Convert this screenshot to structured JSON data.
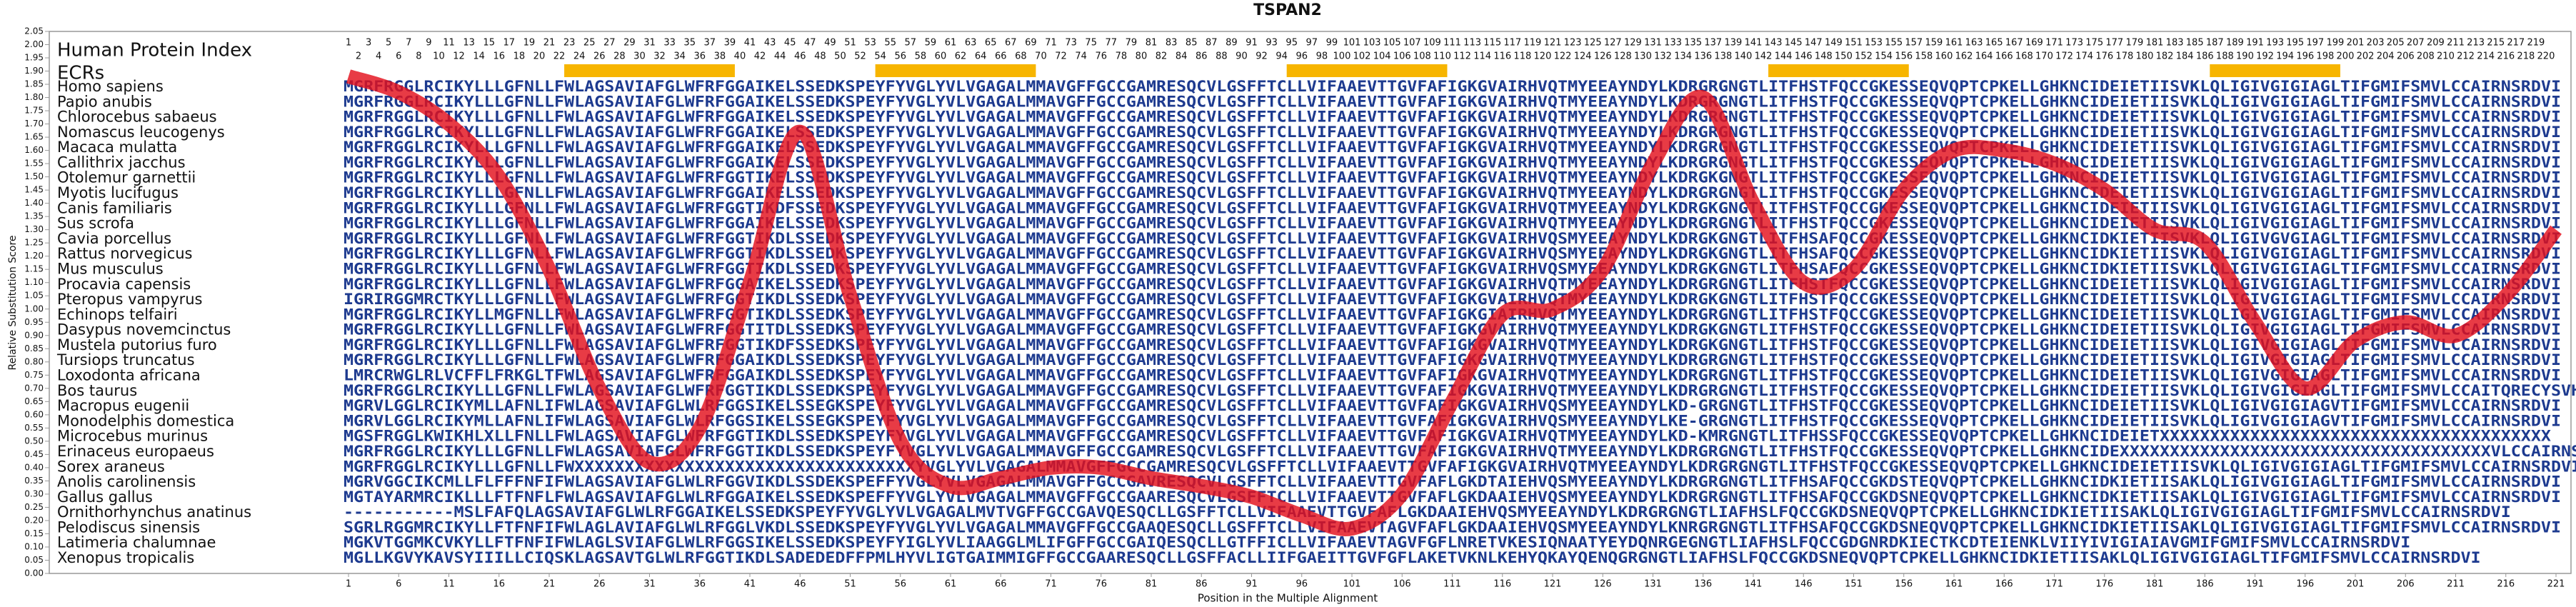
{
  "chart_data": {
    "type": "line",
    "title": "TSPAN2",
    "y_label": "Relative Substitution Score",
    "x_label": "Position in the Multiple Alignment",
    "index_label": "Human Protein Index",
    "ecr_label": "ECRs",
    "x": [
      1,
      6,
      11,
      16,
      21,
      26,
      31,
      36,
      41,
      46,
      51,
      56,
      61,
      66,
      71,
      76,
      81,
      86,
      91,
      96,
      101,
      106,
      111,
      116,
      121,
      126,
      131,
      136,
      141,
      146,
      151,
      156,
      161,
      166,
      171,
      176,
      181,
      186,
      191,
      196,
      201,
      206,
      211,
      216,
      221
    ],
    "values": [
      1.88,
      1.82,
      1.7,
      1.5,
      1.15,
      0.7,
      0.42,
      0.55,
      1.1,
      1.67,
      1.05,
      0.5,
      0.33,
      0.36,
      0.4,
      0.4,
      0.36,
      0.33,
      0.29,
      0.22,
      0.17,
      0.3,
      0.65,
      0.98,
      1.0,
      1.15,
      1.55,
      1.8,
      1.4,
      1.1,
      1.15,
      1.45,
      1.6,
      1.6,
      1.55,
      1.45,
      1.3,
      1.25,
      0.95,
      0.7,
      0.88,
      0.95,
      0.9,
      1.05,
      1.3
    ],
    "color": "#e3101c",
    "xlim": [
      1,
      221
    ],
    "xticks": [
      1,
      6,
      11,
      16,
      21,
      26,
      31,
      36,
      41,
      46,
      51,
      56,
      61,
      66,
      71,
      76,
      81,
      86,
      91,
      96,
      101,
      106,
      111,
      116,
      121,
      126,
      131,
      136,
      141,
      146,
      151,
      156,
      161,
      166,
      171,
      176,
      181,
      186,
      191,
      196,
      201,
      206,
      211,
      216,
      221
    ],
    "ylim": [
      0,
      2.05
    ],
    "yticks": [
      {
        "value": 0,
        "label": "0.00"
      },
      0.05,
      {
        "value": 0.1,
        "label": "0.10"
      },
      0.15,
      {
        "value": 0.2,
        "label": "0.20"
      },
      0.25,
      {
        "value": 0.3,
        "label": "0.30"
      },
      0.35,
      {
        "value": 0.4,
        "label": "0.40"
      },
      0.45,
      {
        "value": 0.5,
        "label": "0.50"
      },
      0.55,
      {
        "value": 0.6,
        "label": "0.60"
      },
      0.65,
      {
        "value": 0.7,
        "label": "0.70"
      },
      0.75,
      {
        "value": 0.8,
        "label": "0.80"
      },
      0.85,
      {
        "value": 0.9,
        "label": "0.90"
      },
      0.95,
      {
        "value": 1,
        "label": "1.00"
      },
      1.05,
      {
        "value": 1.1,
        "label": "1.10"
      },
      1.15,
      {
        "value": 1.2,
        "label": "1.20"
      },
      1.25,
      {
        "value": 1.3,
        "label": "1.30"
      },
      1.35,
      {
        "value": 1.4,
        "label": "1.40"
      },
      1.45,
      {
        "value": 1.5,
        "label": "1.50"
      },
      1.55,
      {
        "value": 1.6,
        "label": "1.60"
      },
      1.65,
      {
        "value": 1.7,
        "label": "1.70"
      },
      1.75,
      {
        "value": 1.8,
        "label": "1.80"
      },
      1.85,
      {
        "value": 1.9,
        "label": "1.90"
      },
      1.95,
      {
        "value": 2,
        "label": "2.00"
      },
      2.05
    ],
    "index": [
      1,
      2,
      3,
      4,
      5,
      6,
      7,
      8,
      9,
      10,
      11,
      12,
      13,
      14,
      15,
      16,
      17,
      18,
      19,
      20,
      21,
      22,
      23,
      24,
      25,
      26,
      27,
      28,
      29,
      30,
      31,
      32,
      33,
      34,
      35,
      36,
      37,
      38,
      39,
      40,
      41,
      42,
      43,
      44,
      45,
      46,
      47,
      48,
      49,
      50,
      51,
      52,
      53,
      54,
      55,
      56,
      57,
      58,
      59,
      60,
      61,
      62,
      63,
      64,
      65,
      66,
      67,
      68,
      69,
      70,
      71,
      72,
      73,
      74,
      75,
      76,
      77,
      78,
      79,
      80,
      81,
      82,
      83,
      84,
      85,
      86,
      87,
      88,
      89,
      90,
      91,
      92,
      93,
      94,
      95,
      96,
      97,
      98,
      99,
      100,
      101,
      102,
      103,
      104,
      105,
      106,
      107,
      108,
      109,
      110,
      111,
      112,
      113,
      114,
      115,
      116,
      117,
      118,
      119,
      120,
      121,
      122,
      123,
      124,
      125,
      126,
      127,
      128,
      129,
      130,
      131,
      132,
      133,
      134,
      135,
      136,
      137,
      138,
      139,
      140,
      141,
      142,
      143,
      144,
      145,
      146,
      147,
      148,
      149,
      150,
      151,
      152,
      153,
      154,
      155,
      156,
      157,
      158,
      159,
      160,
      161,
      162,
      163,
      164,
      165,
      166,
      167,
      168,
      169,
      170,
      171,
      172,
      173,
      174,
      175,
      176,
      177,
      178,
      179,
      180,
      181,
      182,
      183,
      184,
      185,
      186,
      187,
      188,
      189,
      190,
      191,
      192,
      193,
      194,
      195,
      196,
      197,
      198,
      199,
      200,
      201,
      202,
      203,
      204,
      205,
      206,
      207,
      208,
      209,
      210,
      211,
      212,
      213,
      214,
      215,
      216,
      217,
      218,
      219,
      220
    ],
    "ecrs": [
      [
        23,
        39
      ],
      [
        54,
        69
      ],
      [
        95,
        110
      ],
      [
        143,
        156
      ],
      [
        187,
        199
      ]
    ],
    "ecr_color": "#f7b500",
    "species": [
      {
        "name": "Homo sapiens",
        "sequence": "MGRFRGGLRCIKYLLLGFNLLFWLAGSAVIAFGLWFRFGGAIKELSSEDKSPEYFYVGLYVLVGAGALMMAVGFFGCCGAMRESQCVLGSFFTCLLVIFAAEVTTGVFAFIGKGVAIRHVQTMYEEAYNDYLKDRGRGNGTLITFHSTFQCCGKESSEQVQPTCPKELLGHKNCIDEIETIISVKLQLIGIVGIGIAGLTIFGMIFSMVLCCAIRNSRDVI"
      },
      {
        "name": "Papio anubis",
        "sequence": "MGRFRGGLRCIKYLLLGFNLLFWLAGSAVIAFGLWFRFGGAIKELSSEDKSPEYFYVGLYVLVGAGALMMAVGFFGCCGAMRESQCVLGSFFTCLLVIFAAEVTTGVFAFIGKGVAIRHVQTMYEEAYNDYLKDRGRGNGTLITFHSTFQCCGKESSEQVQPTCPKELLGHKNCIDEIETIISVKLQLIGIVGIGIAGLTIFGMIFSMVLCCAIRNSRDVI"
      },
      {
        "name": "Chlorocebus sabaeus",
        "sequence": "MGRFRGGLRCIKYLLLGFNLLFWLAGSAVIAFGLWFRFGGAIKELSSEDKSPEYFYVGLYVLVGAGALMMAVGFFGCCGAMRESQCVLGSFFTCLLVIFAAEVTTGVFAFIGKGVAIRHVQTMYEEAYNDYLKDRGRGNGTLITFHSTFQCCGKESSEQVQPTCPKELLGHKNCIDEIETIISVKLQLIGIVGIGIAGLTIFGMIFSMVLCCAIRNSRDVI"
      },
      {
        "name": "Nomascus leucogenys",
        "sequence": "MGRFRGGLRCIKYLLLGFNLLFWLAGSAVIAFGLWFRFGGAIKELSSEDKSPEYFYVGLYVLVGAGALMMAVGFFGCCGAMRESQCVLGSFFTCLLVIFAAEVTTGVFAFIGKGVAIRHVQTMYEEAYNDYLKDRGRGNGTLITFHSTFQCCGKESSEQVQPTCPKELLGHKNCIDEIETIISVKLQLIGIVGIGIAGLTIFGMIFSMVLCCAIRNSRDVI"
      },
      {
        "name": "Macaca mulatta",
        "sequence": "MGRFRGGLRCIKYLLLGFNLLFWLAGSAVIAFGLWFRFGGAIKELSSEDKSPEYFYVGLYVLVGAGALMMAVGFFGCCGAMRESQCVLGSFFTCLLVIFAAEVTTGVFAFIGKGVAIRHVQTMYEEAYNDYLKDRGRGNGTLITFHSTFQCCGKESSEQVQPTCPKELLGHKNCIDEIETIISVKLQLIGIVGIGIAGLTIFGMIFSMVLCCAIRNSRDVI"
      },
      {
        "name": "Callithrix jacchus",
        "sequence": "MGRFRGGLRCIKYLLLGFNLLFWLAGSAVIAFGLWFRFGGAIKELSSEDKSPEYFYVGLYVLVGAGALMMAVGFFGCCGAMRESQCVLGSFFTCLLVIFAAEVTTGVFAFIGKGVAIRHVQTMYEEAYNDYLKDRGRGNGTLITFHSTFQCCGKESSEQVQPTCPKELLGHKNCIDEIETIISVKLQLIGIVGIGIAGLTIFGMIFSMVLCCAIRNSRDVI"
      },
      {
        "name": "Otolemur garnettii",
        "sequence": "MGRFRGGLRCIKYLLLGFNLLFWLAGSAVIAFGLWFRFGGTIKELSSEDKSPEYFYVGLYVLVGAGALMMAVGFFGCCGAMRESQCVLGSFFTCLLVIFAAEVTTGVFAFIGKGVAIRHVQTMYEEAYNDYLKDRGKGNGTLITFHSTFQCCGKESSEQVQPTCPKELLGHKNCIDEIETIISVKLQLIGIVGIGIAGLTIFGMIFSMVLCCAIRNSRDVI"
      },
      {
        "name": "Myotis lucifugus",
        "sequence": "MGRFRGGLRCIKYLLLGFNLLFWLAGSAVIAFGLWFRFGGAIKELSSEDKSPEYFYVGLYVLVGAGALMMAVGFFGCCGAMRESQCVLGSFFTCLLVIFAAEVTTGVFAFIGKGVAIRHVQTMYEEAYNDYLKDRGRGNGTLITFHSTFQCCGKESSEQVQPTCPKELLGHKNCIDEIETIISVKLQLIGIVGIGIAGLTIFGMIFSMVLCCAIRNSRDVI"
      },
      {
        "name": "Canis familiaris",
        "sequence": "MGRFRGGLRCIKYLLLGFNLLFWLAGSAVIAFGLWFRFGGTIKDFSSEDKSPEYFYVGLYVLVGAGALMMAVGFFGCCGAMRESQCVLGSFFTCLLVIFAAEVTTGVFAFIGKGVAIRHVQTMYEEAYNDYLKDRGKGNGTLITFHSTFQCCGKESSEQVQPTCPKELLGHKNCIDEIETIISVKLQLIGIVGIGIAGLTIFGMIFSMVLCCAIRNSRDVI"
      },
      {
        "name": "Sus scrofa",
        "sequence": "MGRFRGGLRCIKYLLLGFNLLFWLAGSAVIAFGLWFRFGGAIKELSSEDKSPEYFYVGLYVLVGAGALMMAVGFFGCCGAMRESQCVLGSFFTCLLVIFAAEVTTGVFAFIGKGVAIRHVQTMYEEAYNDYLKDRGRGNGTLITFHSTFQCCGKESSEQVQPTCPKELLGHKNCIDEIETIISVKLQLIGIVGIGIAGLTIFGMIFSMVLCCAIRNSRDVI"
      },
      {
        "name": "Cavia porcellus",
        "sequence": "MGRFRGGLRCIKYLLLGFNLLFWLAGSAVIAFGLWFRFGGTIKDLSSEDKSPEYFYVGLYVLVGAGALMMAVGFFGCCGAMRESQCVLGSFFTCLLVIFAAEVTTGVFAFIGKGVAIRHVQSMYEEAYNDYLKDRGKGNGTLITFHSAFQCCGKESSEQVQPTCPKELLGHKNCIDKIETIISVKLQLIGIVGVGIAGLTIFGMIFSMVLCCAIRNSRDVI"
      },
      {
        "name": "Rattus norvegicus",
        "sequence": "MGRFRGGLRCIKYLLLGFNLLFWLAGSAVIAFGLWFRFGGTIKDLSSEDKSPEYFYVGLYVLVGAGALMMAVGFFGCCGAMRESQCVLGSFFTCLLVIFAAEVTTGVFAFIGKGVAIRHVQSMYEEAYNDYLKDRGKGNGTLITFHSAFQCCGKESSEQVQPTCPKELLGHKNCIDKIETIISVKLQLIGIVGIGIAGLTIFGMIFSMVLCCAIRNSRDVI"
      },
      {
        "name": "Mus musculus",
        "sequence": "MGRFRGGLRCIKYLLLGFNLLFWLAGSAVIAFGLWFRFGGTIKDLSSEDKSPEYFYVGLYVLVGAGALMMAVGFFGCCGAMRESQCVLGSFFTCLLVIFAAEVTTGVFAFIGKGVAIRHVQSMYEEAYNDYLKDRGKGNGTLITFHSAFQCCGKESSEQVQPTCPKELLGHKNCIDKIETIISVKLQLIGIVGIGIAGLTIFGMIFSMVLCCAIRNSRDVI"
      },
      {
        "name": "Procavia capensis",
        "sequence": "MGRFRGGLRCIKYLLLGFNLLFWLAGSAVIAFGLWFRFGGAIKELSSEDKSPEYFYVGLYVLVGAGALMMAVGFFGCCGAMRESQCVLGSFFTCLLVIFAAEVTTGVFAFIGKGVAIRHVQTMYEEAYNDYLKDRGRGNGTLITFHSTFQCCGKESSEQVQPTCPKELLGHKNCIDEIETIISVKLQLIGIVGIGIAGLTIFGMIFSMVLCCAIRNSRDVI"
      },
      {
        "name": "Pteropus vampyrus",
        "sequence": "IGRIRGGMRCTKYLLLGFNLLFWLAGSAVIAFGLWFRFGGTIKDLSSEDKSPEYFYVGLYVLVGAGALMMAVGFFGCCGAMRESQCVLGSFFTCLLVIFAAEVTTGVFAFIGKGVAIRHVQTMYEEAYNDYLKDRGKGNGTLITFHSTFQCCGKESSEQVQPTCPKELLGHKNCIDEIETIISVKLQLIGIVGIGIAGLTIFGMIFSMVLCCAIRNSRDVI"
      },
      {
        "name": "Echinops telfairi",
        "sequence": "MGRFRGGLRCIKYLLMGFNLLFWLAGSAVIAFGLWFRFGGTIKDLSSEDKSPEYFYVGLYVLVGAGALMMAVGFFGCCGAMRESQCVLGSFFTCLLVIFAAEVTTGVFAFIGKGIAIRHVQTMYEEAYNDYLKDRGRGNGTLITFHSTFQCCGKESSEQVQPTCPKELLGHKNCIDEIETIISVKLQLIGIVGIGIAGLTIFGMIFSMVLCCAIRNSRDVI"
      },
      {
        "name": "Dasypus novemcinctus",
        "sequence": "MGRFRGGLRCIKYLLLGFNLLFWLAGSAVIAFGLWFRFGGTITDLSSEDKSPEYFYVGLYVLVGAGALMMAVGFFGCCGAMRESQCVLGSFFTCLLVIFAAEVTTGVFAFIGKGVAIRHVQTMYEEAYNDYLKDRGKGNGTLITFHSTFQCCGKESSEQVQPTCPKELLGHKNCIDEIETIISVKLQLIGIVGIGIAGLTIFGMIFSMVLCCAIRNSRDVI"
      },
      {
        "name": "Mustela putorius furo",
        "sequence": "MGRFRGGLRCIKYLLLGFNLLFWLAGSAVIAFGLWFRFGGTIKDFSSEDKSPEYFYVGLYVLVGAGALMMAVGFFGCCGAMRESQCVLGSFFTCLLVIFAAEVTTGVFAFIGKGVAIRHVQTMYEEAYNDYLKDRGKGNGTLITFHSTFQCCGKESSEQVQPTCPKELLGHKNCIDEIETIISVKLQLIGIVGIGIAGLTIFGMIFSMVLCCAIRNSRDVI"
      },
      {
        "name": "Tursiops truncatus",
        "sequence": "MGRFRGGLRCIKYLLLGFNLLFWLAGSAVIAFGLWFRFGGAIKDLSSEDKSPEYFYVGLYVLVGAGALMMAVGFFGCCGAMRESQCVLGSFFTCLLVIFAAEVTTGVFAFIGKGVAIRHVQTMYEEAYNDYLKDRGRGNGTLITFHSTFQCCGKESSEQVQPTCPKELLGHKNCIDEIETIISVKLQLIGIVGIGIAGLTIFGMIFSMVLCCAIRNSRDVI"
      },
      {
        "name": "Loxodonta africana",
        "sequence": "LMRCRWGLRLVCFFLFRKGLTFWLAGSAVIAFGLWFRFGGAIKDLSSEDKSPEYFYVGLYVLVGAGALMMAVGFFGCCGAMRESQCVLGSFFTCLLVIFAAEVTTGVFAFIGKGVAIRHVQTMYEEAYNDYLKDRGRGNGTLITFHSTFQCCGKESSEQVQPTCPKELLGHKNCIDEIETIISVKLQLIGIVGIGIAGLTIFGMIFSMVLCCAIRNSRDVI"
      },
      {
        "name": "Bos taurus",
        "sequence": "MGRFRGGLRCIKYLLLGFNLLFWLAGSAVIAFGLWFRFGGTIKDLSSEDKSPEYFYVGLYVLVGAGALMMAVGFFGCCGAMRESQCVLGSFFTCLLVIFAAEVTTGVFAFIGKGVAIRHVQTMYEEAYNDYLKDRGRGNGTLITFHSTFQCCGKESSEQVQPTCPKELLGHKNCIDEIETIISVKLQLIGIVGIGIAGLTIFGMIFSMVLCCAITQRECYSVHVIKQYENPKTQ"
      },
      {
        "name": "Macropus eugenii",
        "sequence": "MGRVLGGLRCIKYMLLAFNLIFWLAGSAVIAFGLWLRFGGSIKELSSEGKSPEYFYVGLYVLVGAGALMMAVGFFGCCGAMRESQCVLGSFFTCLLVIFAAEVTTGVFAFIGKGVAIRHVQSMYEEAYNDYLKD-GRGNGTLITFHSTFQCCGKESSEQVQPTCPKELLGHKNCIDEIETIISVKLQLIGIVGIGIAGVTIFGMIFSMVLCCAIRNSRDVI"
      },
      {
        "name": "Monodelphis domestica",
        "sequence": "MGRVLGGLRCIKYMLLAFNLIFWLAGSAVIAFGLWLRFGGSIKELSSEGKSPEYFYVGLYVLVGAGALMMAVGFFGCCGAMRESQCVLGSFFTCLLVIFAAEVTTGVFAFIGKGVAIRHVQSMYEEAYNDYLKE-GRGNGTLITFHSTFQCCGKESSEQVQPTCPKELLGHKNCIDEIETIISVKLQLIGIVGIGIAGVTIFGMIFSMVLCCAIRNSRDVI"
      },
      {
        "name": "Microcebus murinus",
        "sequence": "MGSFRGGLKWIKHLXLLFNLLFWLAGSAVIAFGLWFRFGGTIKDLSSEDKSPEYFYVGLYVLVGAGALMMAVGFFGCCGAMRESQCVLGSFFTCLLVIFAAEVTTGVFAFIGKGVAIRHVQTMYEEAYNDYLKD-KMRGNGTLITFHSSFQCCGKESSEQVQPTCPKELLGHKNCIDEIETXXXXXXXXXXXXXXXXXXXXXXXXXXXXXXXXXXXXXXX"
      },
      {
        "name": "Erinaceus europaeus",
        "sequence": "MGRFRGGLRCIKYLLLGFNLLFWLAGSAVIAFGLWFRFGGTIKDLSSEDKSPEYFYVGLYVLVGAGALMMAVGFFGCCGAMRESQCVLGSFFTCLLVIFAAEVTTGVFAFIGKGVAIRHVQTMYEEAYNDYLKDRGRGNGTLITFHSTFQCCGKESSEQVQPTCPKELLGHKNCIDEXXXXXXXXXXXXXXXXXXXXXXXXXXXXXXXXXXXXXVLCCAIRNSRDVI"
      },
      {
        "name": "Sorex araneus",
        "sequence": "MGRFRGGLRCIKYLLLGFNLLFWXXXXXXXXXXXXXXXXXXXXXXXXXXXXXXXXXXYVGLYVLVGAGALMMAVGFFGCCGAMRESQCVLGSFFTCLLVIFAAEVTTGVFAFIGKGVAIRHVQTMYEEAYNDYLKDRGRGNGTLITFHSTFQCCGKESSEQVQPTCPKELLGHKNCIDEIETIISVKLQLIGIVGIGIAGLTIFGMIFSMVLCCAIRNSRDVI"
      },
      {
        "name": "Anolis carolinensis",
        "sequence": "MGRVGGCIKCMLLFLFFFNFIFWLAGSAVIAFGLWLRFGGVIKDLSSDEKSPEFFYVGLYVLVGAGALMMAVGFFGCCGAVRESQCVLGSFFTCLLVIFAAEVTTGVFAFLGKDTAIEHVQSMYEEAYNDYLKDRGRGNGTLITFHSAFQCCGKDSTEQVQPTCPKELLGHKNCIDKIETIISAKLQLIGIVGIGIAGLTIFGMIFSMVLCCAIRNSRDVI"
      },
      {
        "name": "Gallus gallus",
        "sequence": "MGTAYARMRCIKLLLFTFNFLFWLAGSAVIAFGLWLRFGGAIKELSSEDKSPEFFYVGLYVLVGAGALMMAVGFFGCCGAARESQCVLGSFFTCLLVIFAAEVTTGVFAFLGKDAAIEHVQSMYEEAYNDYLKDRGRGNGTLITFHSAFQCCGKDSNEQVQPTCPKELLGHKNCIDKIETIISAKLQLIGIVGIGIAGLTIFGMIFSMVLCCAIRNSRDVI"
      },
      {
        "name": "Ornithorhynchus anatinus",
        "sequence": "-----------MSLFAFQLAGSAVIAFGLWLRFGGAIKELSSEDKSPEYFYVGLYVLVGAGALMVTVGFFGCCGAVQESQCLLGSFFTCLLVIFAAEVTTGVFAFLGKDAAIEHVQSMYEEAYNDYLKDRGRGNGTLIAFHSLFQCCGKDSNEQVQPTCPKELLGHKNCIDKIETIISAKLQLIGIVGIGIAGLTIFGMIFSMVLCCAIRNSRDVI"
      },
      {
        "name": "Pelodiscus sinensis",
        "sequence": "SGRLRGGMRCIKYLLFTFNFIFWLAGLAVIAFGLWLRFGGLVKDLSSEDKSPEYFYVGLYVLVGAGALMMAVGFFGCCGAAQESQCLLGSFFTCLLVIFAAEVTAGVFAFLGKDAAIEHVQSMYEEAYNDYLKNRGRGNGTLITFHSAFQCCGKDSNEQVQPTCPKELLGHKNCIDKIETIISAKLQLIGIVGIGIAGLTIFGMIFSMVLCCAIRNSRDVI"
      },
      {
        "name": "Latimeria chalumnae",
        "sequence": "MGKVTGGMKCVKYLLFTFNFIFWLAGLSVIAFGLWLRFGGSIKELSSEDKSPEYFYIGLYVLIAAGGLMLIFGFFGCCGAIQESQCLLGTFFICLLVIFAAEVTAGVFGFLNRETVKESIQNAATYEYDQNRGEGNGTLIAFHSLFQCCGDGNRDKIECTKCDTEIENKLVIIYIVIGIAIAVGMIFGMIFSMVLCCAIRNSRDVI"
      },
      {
        "name": "Xenopus tropicalis",
        "sequence": "MGLLKGVYKAVSYIIILLCIQSKLAGSAVTGLWLRFGGTIKDLSADEDEDFFPMLHYVLIGTGAIMMIGFFGCCGAARESQCLLGSFFACLLIIFGAEITTGVFGFLAKETVKNLKEHYQKAYQENQGRGNGTLIAFHSLFQCCGKDSNEQVQPTCPKELLGHKNCIDKIETIISAKLQLIGIVGIGIAGLTIFGMIFSMVLCCAIRNSRDVI"
      }
    ]
  }
}
